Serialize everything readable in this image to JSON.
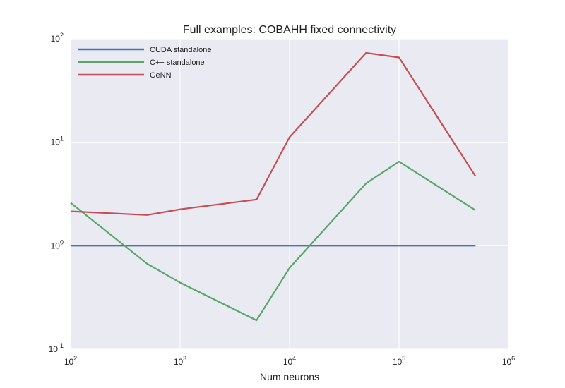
{
  "chart_data": {
    "type": "line",
    "title": "Full examples: COBAHH fixed connectivity",
    "xlabel": "Num neurons",
    "ylabel": "",
    "xscale": "log",
    "yscale": "log",
    "xlim": [
      100,
      1000000
    ],
    "ylim": [
      0.1,
      100
    ],
    "grid": true,
    "legend_position": "top-left",
    "background": "#eaeaf2",
    "x_ticks": [
      {
        "base": "10",
        "exp": "2",
        "value": 100
      },
      {
        "base": "10",
        "exp": "3",
        "value": 1000
      },
      {
        "base": "10",
        "exp": "4",
        "value": 10000
      },
      {
        "base": "10",
        "exp": "5",
        "value": 100000
      },
      {
        "base": "10",
        "exp": "6",
        "value": 1000000
      }
    ],
    "y_ticks": [
      {
        "base": "10",
        "exp": "-1",
        "value": 0.1
      },
      {
        "base": "10",
        "exp": "0",
        "value": 1
      },
      {
        "base": "10",
        "exp": "1",
        "value": 10
      },
      {
        "base": "10",
        "exp": "2",
        "value": 100
      }
    ],
    "x": [
      100,
      500,
      1000,
      5000,
      10000,
      50000,
      100000,
      500000
    ],
    "series": [
      {
        "name": "CUDA standalone",
        "color": "#4c72b0",
        "values": [
          1,
          1,
          1,
          1,
          1,
          1,
          1,
          1
        ]
      },
      {
        "name": "C++ standalone",
        "color": "#55a868",
        "values": [
          2.6,
          0.67,
          0.44,
          0.19,
          0.61,
          4.0,
          6.5,
          2.2
        ]
      },
      {
        "name": "GeNN",
        "color": "#c44e52",
        "values": [
          2.15,
          1.98,
          2.25,
          2.8,
          11.2,
          73,
          66,
          4.7
        ]
      }
    ]
  }
}
